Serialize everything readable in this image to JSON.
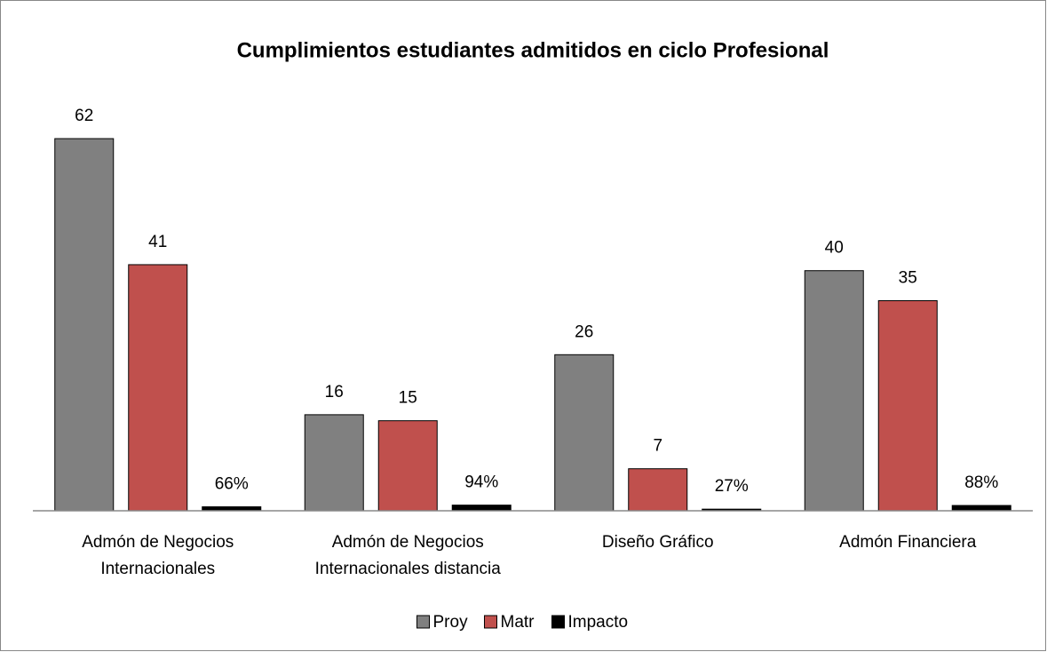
{
  "chart_data": {
    "type": "bar",
    "title": "Cumplimientos estudiantes admitidos en ciclo Profesional",
    "categories": [
      "Admón de Negocios Internacionales",
      "Admón de Negocios Internacionales distancia",
      "Diseño Gráfico",
      "Admón Financiera"
    ],
    "series": [
      {
        "name": "Proy",
        "color": "#808080",
        "values": [
          62,
          16,
          26,
          40
        ]
      },
      {
        "name": "Matr",
        "color": "#c0504d",
        "values": [
          41,
          15,
          7,
          35
        ]
      },
      {
        "name": "Impacto",
        "color": "#000000",
        "values": [
          0.66,
          0.94,
          0.27,
          0.88
        ],
        "value_labels": [
          "66%",
          "94%",
          "27%",
          "88%"
        ]
      }
    ],
    "ylim": [
      0,
      70
    ],
    "legend": "bottom"
  }
}
